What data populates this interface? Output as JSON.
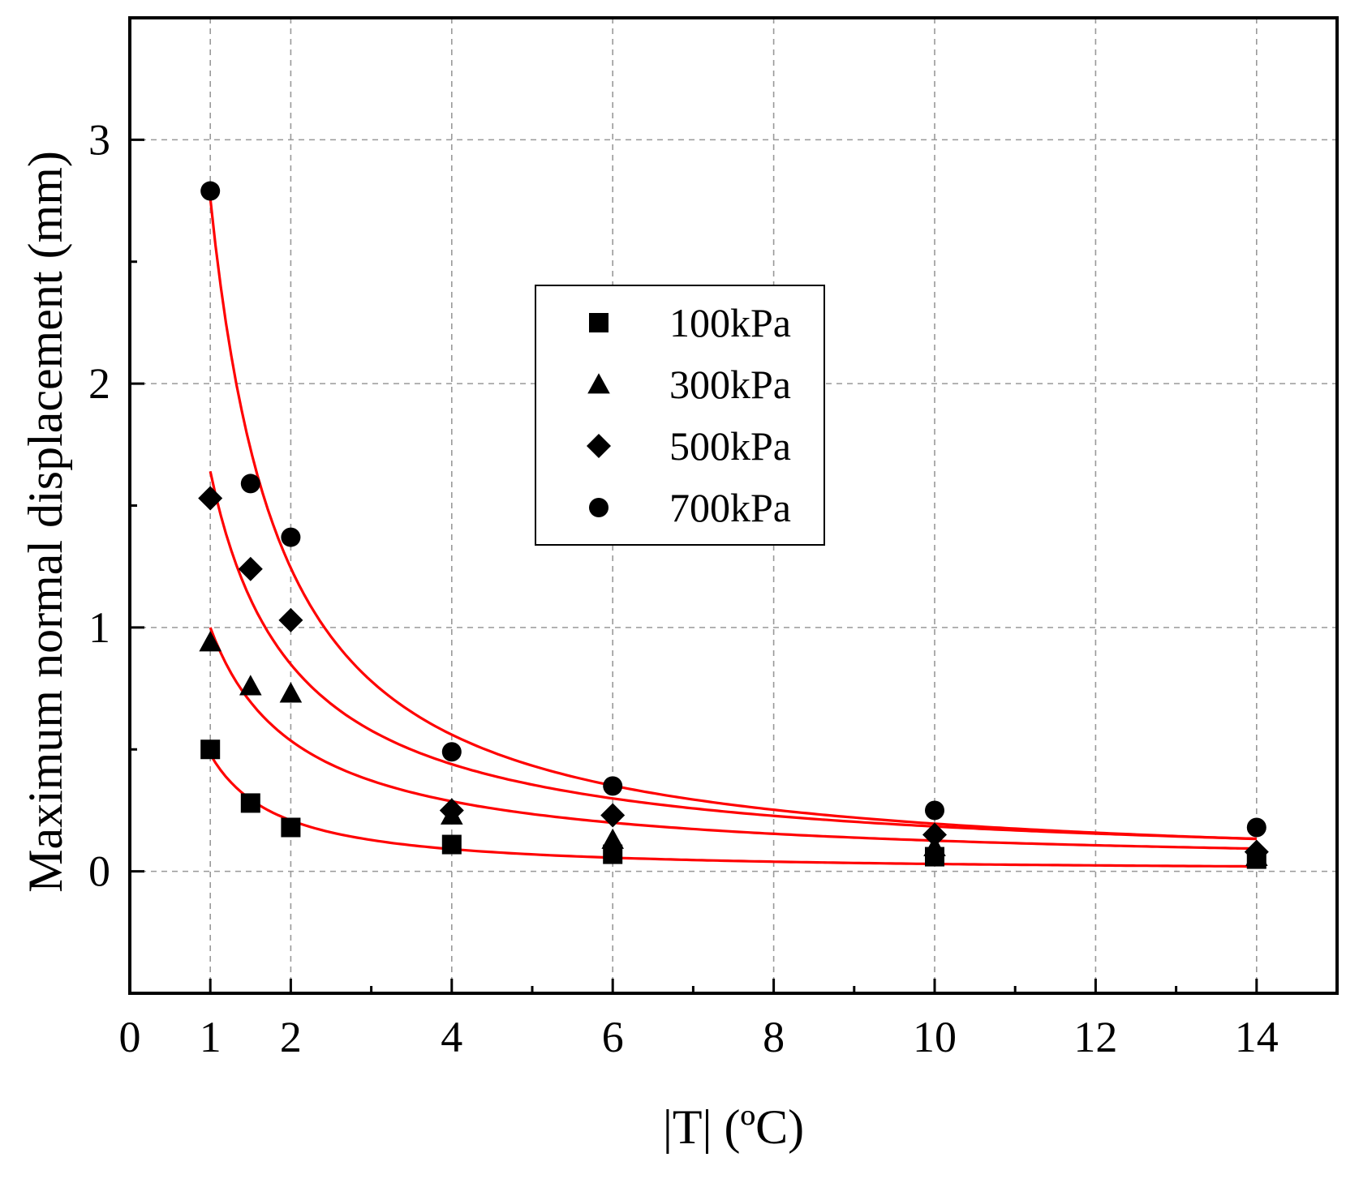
{
  "chart_data": {
    "type": "scatter",
    "title": "",
    "xlabel": "|T| (ºC)",
    "ylabel": "Maximum normal displacement (mm)",
    "xlim": [
      0,
      15
    ],
    "ylim": [
      -0.5,
      3.5
    ],
    "xticks": [
      0,
      1,
      2,
      4,
      6,
      8,
      10,
      12,
      14
    ],
    "xtick_labels": [
      "0",
      "1",
      "2",
      "4",
      "6",
      "8",
      "10",
      "12",
      "14"
    ],
    "yticks": [
      0,
      1,
      2,
      3
    ],
    "ytick_labels": [
      "0",
      "1",
      "2",
      "3"
    ],
    "grid": true,
    "legend_position": "center",
    "series": [
      {
        "name": "100kPa",
        "marker": "square",
        "x": [
          1,
          1.5,
          2,
          4,
          6,
          10,
          14
        ],
        "y": [
          0.5,
          0.28,
          0.18,
          0.11,
          0.07,
          0.06,
          0.05
        ],
        "fit": {
          "type": "power",
          "a": 0.48,
          "b": -1.2
        }
      },
      {
        "name": "300kPa",
        "marker": "triangle",
        "x": [
          1,
          1.5,
          2,
          4,
          6,
          10,
          14
        ],
        "y": [
          0.94,
          0.76,
          0.73,
          0.23,
          0.13,
          0.1,
          0.06
        ],
        "fit": {
          "type": "power",
          "a": 1.0,
          "b": -0.9
        }
      },
      {
        "name": "500kPa",
        "marker": "diamond",
        "x": [
          1,
          1.5,
          2,
          4,
          6,
          10,
          14
        ],
        "y": [
          1.53,
          1.24,
          1.03,
          0.25,
          0.23,
          0.15,
          0.08
        ],
        "fit": {
          "type": "power",
          "a": 1.64,
          "b": -0.95
        }
      },
      {
        "name": "700kPa",
        "marker": "circle",
        "x": [
          1,
          1.5,
          2,
          4,
          6,
          10,
          14
        ],
        "y": [
          2.79,
          1.59,
          1.37,
          0.49,
          0.35,
          0.25,
          0.18
        ],
        "fit": {
          "type": "power",
          "a": 2.76,
          "b": -1.15
        }
      }
    ],
    "colors": {
      "markers": "#000000",
      "fit_lines": "#ff0000",
      "grid": "#999999",
      "axes": "#000000"
    }
  }
}
